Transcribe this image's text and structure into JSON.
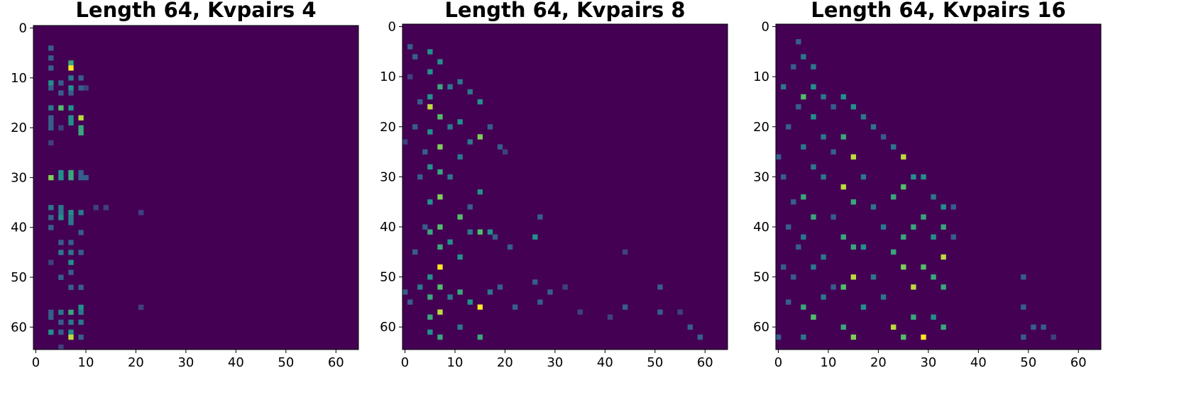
{
  "chart_data": [
    {
      "type": "heatmap",
      "title": "Length 64, Kvpairs 4",
      "colormap": "viridis",
      "zlim": [
        0,
        1
      ],
      "xlim": [
        -0.5,
        64.5
      ],
      "ylim": [
        64.5,
        -0.5
      ],
      "xticks": [
        0,
        10,
        20,
        30,
        40,
        50,
        60
      ],
      "yticks": [
        0,
        10,
        20,
        30,
        40,
        50,
        60
      ],
      "cells": [
        [
          3,
          4,
          0.3
        ],
        [
          3,
          6,
          0.3
        ],
        [
          3,
          8,
          0.3
        ],
        [
          3,
          11,
          0.5
        ],
        [
          3,
          12,
          0.3
        ],
        [
          3,
          16,
          0.4
        ],
        [
          3,
          18,
          0.3
        ],
        [
          3,
          19,
          0.3
        ],
        [
          3,
          20,
          0.3
        ],
        [
          3,
          23,
          0.2
        ],
        [
          3,
          30,
          0.8
        ],
        [
          3,
          36,
          0.4
        ],
        [
          3,
          38,
          0.3
        ],
        [
          3,
          40,
          0.3
        ],
        [
          3,
          47,
          0.2
        ],
        [
          3,
          57,
          0.3
        ],
        [
          3,
          58,
          0.3
        ],
        [
          3,
          61,
          0.5
        ],
        [
          5,
          11,
          0.3
        ],
        [
          5,
          13,
          0.3
        ],
        [
          5,
          16,
          0.7
        ],
        [
          5,
          20,
          0.2
        ],
        [
          5,
          29,
          0.5
        ],
        [
          5,
          30,
          0.5
        ],
        [
          5,
          36,
          0.4
        ],
        [
          5,
          37,
          0.4
        ],
        [
          5,
          38,
          0.5
        ],
        [
          5,
          43,
          0.3
        ],
        [
          5,
          45,
          0.4
        ],
        [
          5,
          50,
          0.3
        ],
        [
          5,
          57,
          0.4
        ],
        [
          5,
          59,
          0.3
        ],
        [
          5,
          61,
          0.3
        ],
        [
          5,
          64,
          0.2
        ],
        [
          7,
          7,
          0.6
        ],
        [
          7,
          8,
          1.0
        ],
        [
          7,
          10,
          0.4
        ],
        [
          7,
          12,
          0.5
        ],
        [
          7,
          13,
          0.3
        ],
        [
          7,
          16,
          0.5
        ],
        [
          7,
          18,
          0.5
        ],
        [
          7,
          19,
          0.5
        ],
        [
          7,
          29,
          0.6
        ],
        [
          7,
          30,
          0.6
        ],
        [
          7,
          37,
          0.5
        ],
        [
          7,
          38,
          0.4
        ],
        [
          7,
          39,
          0.4
        ],
        [
          7,
          43,
          0.3
        ],
        [
          7,
          45,
          0.4
        ],
        [
          7,
          47,
          0.5
        ],
        [
          7,
          49,
          0.3
        ],
        [
          7,
          52,
          0.3
        ],
        [
          7,
          57,
          0.6
        ],
        [
          7,
          59,
          0.4
        ],
        [
          7,
          61,
          0.5
        ],
        [
          7,
          62,
          0.9
        ],
        [
          9,
          10,
          0.3
        ],
        [
          9,
          12,
          0.3
        ],
        [
          9,
          18,
          0.9
        ],
        [
          9,
          20,
          0.6
        ],
        [
          9,
          21,
          0.6
        ],
        [
          9,
          29,
          0.3
        ],
        [
          9,
          30,
          0.3
        ],
        [
          9,
          37,
          0.4
        ],
        [
          9,
          41,
          0.3
        ],
        [
          9,
          45,
          0.3
        ],
        [
          9,
          52,
          0.3
        ],
        [
          9,
          56,
          0.5
        ],
        [
          9,
          57,
          0.4
        ],
        [
          9,
          59,
          0.4
        ],
        [
          9,
          62,
          0.3
        ],
        [
          10,
          12,
          0.2
        ],
        [
          10,
          30,
          0.3
        ],
        [
          12,
          36,
          0.2
        ],
        [
          14,
          36,
          0.2
        ],
        [
          21,
          37,
          0.2
        ],
        [
          21,
          56,
          0.2
        ]
      ]
    },
    {
      "type": "heatmap",
      "title": "Length 64, Kvpairs 8",
      "colormap": "viridis",
      "zlim": [
        0,
        1
      ],
      "xlim": [
        -0.5,
        64.5
      ],
      "ylim": [
        64.5,
        -0.5
      ],
      "xticks": [
        0,
        10,
        20,
        30,
        40,
        50,
        60
      ],
      "yticks": [
        0,
        10,
        20,
        30,
        40,
        50,
        60
      ],
      "cells": [
        [
          0,
          53,
          0.3
        ],
        [
          0,
          23,
          0.2
        ],
        [
          1,
          4,
          0.3
        ],
        [
          1,
          10,
          0.2
        ],
        [
          1,
          55,
          0.3
        ],
        [
          2,
          6,
          0.3
        ],
        [
          2,
          20,
          0.3
        ],
        [
          2,
          45,
          0.3
        ],
        [
          3,
          15,
          0.3
        ],
        [
          3,
          30,
          0.3
        ],
        [
          3,
          52,
          0.4
        ],
        [
          4,
          25,
          0.3
        ],
        [
          4,
          40,
          0.3
        ],
        [
          5,
          5,
          0.5
        ],
        [
          5,
          9,
          0.5
        ],
        [
          5,
          14,
          0.5
        ],
        [
          5,
          16,
          0.9
        ],
        [
          5,
          21,
          0.5
        ],
        [
          5,
          28,
          0.5
        ],
        [
          5,
          35,
          0.5
        ],
        [
          5,
          41,
          0.6
        ],
        [
          5,
          50,
          0.5
        ],
        [
          5,
          54,
          0.6
        ],
        [
          5,
          58,
          0.6
        ],
        [
          5,
          61,
          0.5
        ],
        [
          7,
          7,
          0.5
        ],
        [
          7,
          12,
          0.6
        ],
        [
          7,
          18,
          0.7
        ],
        [
          7,
          24,
          0.8
        ],
        [
          7,
          29,
          0.6
        ],
        [
          7,
          34,
          0.8
        ],
        [
          7,
          40,
          0.7
        ],
        [
          7,
          44,
          0.6
        ],
        [
          7,
          48,
          1.0
        ],
        [
          7,
          52,
          0.7
        ],
        [
          7,
          57,
          0.9
        ],
        [
          7,
          62,
          0.6
        ],
        [
          9,
          12,
          0.4
        ],
        [
          9,
          20,
          0.4
        ],
        [
          9,
          30,
          0.4
        ],
        [
          9,
          43,
          0.5
        ],
        [
          9,
          54,
          0.4
        ],
        [
          11,
          11,
          0.4
        ],
        [
          11,
          19,
          0.5
        ],
        [
          11,
          26,
          0.4
        ],
        [
          11,
          38,
          0.7
        ],
        [
          11,
          46,
          0.5
        ],
        [
          11,
          53,
          0.6
        ],
        [
          11,
          60,
          0.4
        ],
        [
          13,
          13,
          0.4
        ],
        [
          13,
          23,
          0.4
        ],
        [
          13,
          36,
          0.3
        ],
        [
          13,
          41,
          0.4
        ],
        [
          13,
          55,
          0.5
        ],
        [
          15,
          15,
          0.5
        ],
        [
          15,
          22,
          0.8
        ],
        [
          15,
          33,
          0.5
        ],
        [
          15,
          41,
          0.7
        ],
        [
          15,
          56,
          1.0
        ],
        [
          15,
          62,
          0.6
        ],
        [
          17,
          20,
          0.3
        ],
        [
          17,
          41,
          0.5
        ],
        [
          17,
          53,
          0.4
        ],
        [
          18,
          42,
          0.3
        ],
        [
          19,
          24,
          0.3
        ],
        [
          19,
          52,
          0.3
        ],
        [
          20,
          25,
          0.2
        ],
        [
          21,
          44,
          0.3
        ],
        [
          22,
          56,
          0.3
        ],
        [
          26,
          42,
          0.5
        ],
        [
          26,
          51,
          0.3
        ],
        [
          27,
          38,
          0.3
        ],
        [
          27,
          55,
          0.3
        ],
        [
          29,
          53,
          0.3
        ],
        [
          32,
          52,
          0.2
        ],
        [
          35,
          57,
          0.2
        ],
        [
          41,
          58,
          0.2
        ],
        [
          44,
          45,
          0.2
        ],
        [
          44,
          56,
          0.3
        ],
        [
          51,
          52,
          0.3
        ],
        [
          51,
          57,
          0.3
        ],
        [
          55,
          57,
          0.2
        ],
        [
          57,
          60,
          0.3
        ],
        [
          59,
          62,
          0.3
        ]
      ]
    },
    {
      "type": "heatmap",
      "title": "Length 64, Kvpairs 16",
      "colormap": "viridis",
      "zlim": [
        0,
        1
      ],
      "xlim": [
        -0.5,
        64.5
      ],
      "ylim": [
        64.5,
        -0.5
      ],
      "xticks": [
        0,
        10,
        20,
        30,
        40,
        50,
        60
      ],
      "yticks": [
        0,
        10,
        20,
        30,
        40,
        50,
        60
      ],
      "cells": [
        [
          0,
          26,
          0.3
        ],
        [
          0,
          62,
          0.3
        ],
        [
          1,
          12,
          0.4
        ],
        [
          1,
          30,
          0.3
        ],
        [
          1,
          48,
          0.3
        ],
        [
          2,
          20,
          0.3
        ],
        [
          2,
          40,
          0.3
        ],
        [
          2,
          55,
          0.3
        ],
        [
          3,
          8,
          0.3
        ],
        [
          3,
          35,
          0.3
        ],
        [
          3,
          50,
          0.3
        ],
        [
          4,
          3,
          0.3
        ],
        [
          4,
          16,
          0.3
        ],
        [
          4,
          44,
          0.3
        ],
        [
          5,
          6,
          0.4
        ],
        [
          5,
          14,
          0.7
        ],
        [
          5,
          24,
          0.4
        ],
        [
          5,
          34,
          0.6
        ],
        [
          5,
          42,
          0.4
        ],
        [
          5,
          56,
          0.6
        ],
        [
          5,
          62,
          0.4
        ],
        [
          7,
          8,
          0.4
        ],
        [
          7,
          12,
          0.5
        ],
        [
          7,
          18,
          0.5
        ],
        [
          7,
          28,
          0.4
        ],
        [
          7,
          38,
          0.6
        ],
        [
          7,
          48,
          0.4
        ],
        [
          7,
          58,
          0.7
        ],
        [
          9,
          14,
          0.4
        ],
        [
          9,
          22,
          0.4
        ],
        [
          9,
          30,
          0.4
        ],
        [
          9,
          46,
          0.4
        ],
        [
          9,
          54,
          0.4
        ],
        [
          11,
          16,
          0.3
        ],
        [
          11,
          25,
          0.3
        ],
        [
          11,
          38,
          0.3
        ],
        [
          11,
          52,
          0.3
        ],
        [
          13,
          14,
          0.5
        ],
        [
          13,
          22,
          0.6
        ],
        [
          13,
          32,
          0.9
        ],
        [
          13,
          42,
          0.6
        ],
        [
          13,
          52,
          0.7
        ],
        [
          13,
          60,
          0.6
        ],
        [
          15,
          16,
          0.5
        ],
        [
          15,
          26,
          0.9
        ],
        [
          15,
          35,
          0.6
        ],
        [
          15,
          44,
          0.6
        ],
        [
          15,
          50,
          0.9
        ],
        [
          15,
          62,
          0.8
        ],
        [
          17,
          18,
          0.4
        ],
        [
          17,
          30,
          0.4
        ],
        [
          17,
          44,
          0.5
        ],
        [
          17,
          56,
          0.5
        ],
        [
          19,
          20,
          0.4
        ],
        [
          19,
          36,
          0.4
        ],
        [
          19,
          50,
          0.4
        ],
        [
          21,
          22,
          0.3
        ],
        [
          21,
          40,
          0.4
        ],
        [
          21,
          54,
          0.4
        ],
        [
          23,
          24,
          0.4
        ],
        [
          23,
          34,
          0.6
        ],
        [
          23,
          45,
          0.6
        ],
        [
          23,
          60,
          0.9
        ],
        [
          25,
          26,
          0.9
        ],
        [
          25,
          32,
          0.7
        ],
        [
          25,
          42,
          0.6
        ],
        [
          25,
          48,
          0.8
        ],
        [
          25,
          62,
          0.7
        ],
        [
          27,
          30,
          0.5
        ],
        [
          27,
          40,
          0.6
        ],
        [
          27,
          52,
          0.9
        ],
        [
          27,
          58,
          0.6
        ],
        [
          29,
          30,
          0.5
        ],
        [
          29,
          38,
          0.6
        ],
        [
          29,
          48,
          0.7
        ],
        [
          29,
          62,
          1.0
        ],
        [
          31,
          34,
          0.4
        ],
        [
          31,
          42,
          0.5
        ],
        [
          31,
          50,
          0.6
        ],
        [
          31,
          58,
          0.5
        ],
        [
          33,
          36,
          0.5
        ],
        [
          33,
          40,
          0.6
        ],
        [
          33,
          46,
          0.9
        ],
        [
          33,
          52,
          0.6
        ],
        [
          33,
          60,
          0.6
        ],
        [
          35,
          36,
          0.3
        ],
        [
          35,
          42,
          0.3
        ],
        [
          49,
          50,
          0.3
        ],
        [
          49,
          56,
          0.3
        ],
        [
          49,
          62,
          0.3
        ],
        [
          51,
          60,
          0.3
        ],
        [
          53,
          60,
          0.3
        ],
        [
          55,
          62,
          0.2
        ]
      ]
    }
  ]
}
